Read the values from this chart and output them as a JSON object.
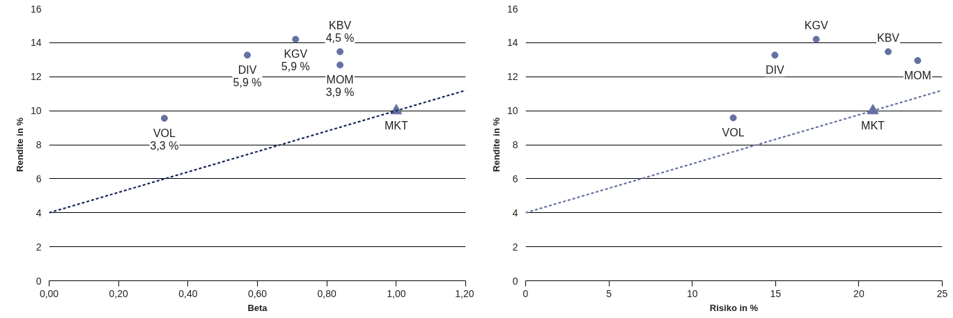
{
  "chart_data": [
    {
      "type": "scatter",
      "xlabel": "Beta",
      "ylabel": "Rendite in %",
      "xlim": [
        0,
        1.2
      ],
      "ylim": [
        0,
        16
      ],
      "xticks": [
        {
          "value": 0,
          "label": "0,00"
        },
        {
          "value": 0.2,
          "label": "0,20"
        },
        {
          "value": 0.4,
          "label": "0,40"
        },
        {
          "value": 0.6,
          "label": "0,60"
        },
        {
          "value": 0.8,
          "label": "0,80"
        },
        {
          "value": 1.0,
          "label": "1,00"
        },
        {
          "value": 1.2,
          "label": "1,20"
        }
      ],
      "yticks": [
        0,
        2,
        4,
        6,
        8,
        10,
        12,
        14,
        16
      ],
      "grid": "y",
      "series": [
        {
          "marker": "circle",
          "color": "#6471a1",
          "x": [
            0.332,
            0.571,
            0.71,
            0.838,
            0.838
          ],
          "values": [
            9.56,
            13.27,
            14.2,
            13.47,
            12.69
          ]
        },
        {
          "marker": "triangle",
          "color": "#6471a1",
          "x": [
            1.0
          ],
          "values": [
            10.0
          ]
        },
        {
          "type": "line",
          "line_style": "dashed",
          "marker": "none",
          "color": "#16255a",
          "x": [
            0,
            1.2
          ],
          "values": [
            4,
            11.2
          ]
        }
      ],
      "annotations": [
        {
          "text": "VOL\n3,3 %",
          "x": 0.332,
          "y": 9.56
        },
        {
          "text": "DIV\n5,9 %",
          "x": 0.571,
          "y": 13.27
        },
        {
          "text": "KGV\n5,9 %",
          "x": 0.71,
          "y": 14.2
        },
        {
          "text": "KBV\n4,5 %",
          "x": 0.838,
          "y": 13.47
        },
        {
          "text": "MOM\n3,9 %",
          "x": 0.838,
          "y": 12.69
        },
        {
          "text": "MKT",
          "x": 1.0,
          "y": 10.0
        }
      ]
    },
    {
      "type": "scatter",
      "xlabel": "Risiko in %",
      "ylabel": "Rendite in %",
      "xlim": [
        0,
        25
      ],
      "ylim": [
        0,
        16
      ],
      "xticks": [
        0,
        5,
        10,
        15,
        20,
        25
      ],
      "yticks": [
        0,
        2,
        4,
        6,
        8,
        10,
        12,
        14,
        16
      ],
      "grid": "y",
      "series": [
        {
          "marker": "circle",
          "color": "#6471a1",
          "x": [
            12.46,
            14.96,
            17.44,
            21.76,
            23.53
          ],
          "values": [
            9.58,
            13.27,
            14.2,
            13.47,
            12.95
          ]
        },
        {
          "marker": "triangle",
          "color": "#6471a1",
          "x": [
            20.84
          ],
          "values": [
            10.0
          ]
        },
        {
          "type": "line",
          "line_style": "dashed",
          "marker": "none",
          "color": "#6471a1",
          "x": [
            0,
            25
          ],
          "values": [
            4,
            11.2
          ]
        }
      ],
      "annotations": [
        {
          "text": "VOL",
          "x": 12.46,
          "y": 9.58
        },
        {
          "text": "DIV",
          "x": 14.96,
          "y": 13.27
        },
        {
          "text": "KGV",
          "x": 17.44,
          "y": 14.2
        },
        {
          "text": "KBV",
          "x": 21.76,
          "y": 13.47
        },
        {
          "text": "MOM",
          "x": 23.53,
          "y": 12.95
        },
        {
          "text": "MKT",
          "x": 20.84,
          "y": 10.0
        }
      ]
    }
  ]
}
